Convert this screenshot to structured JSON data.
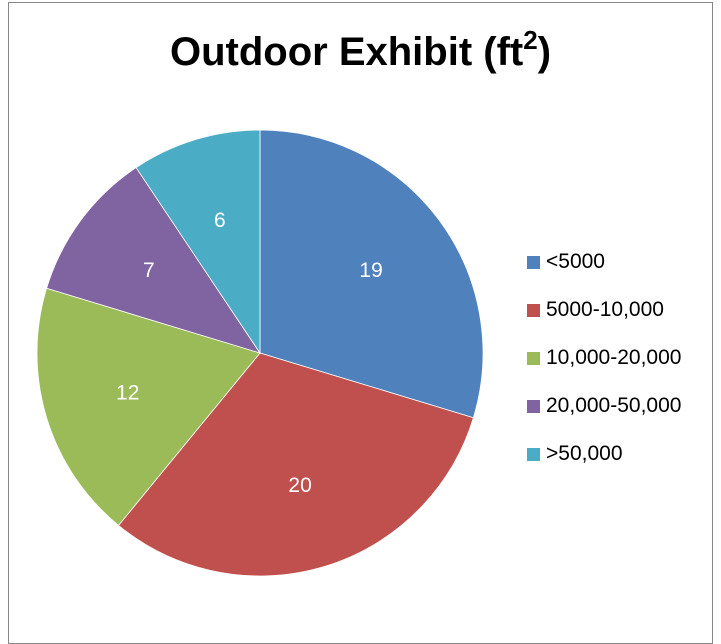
{
  "chart_data": {
    "type": "pie",
    "title_main": "Outdoor Exhibit (ft",
    "title_sup": "2",
    "title_close": ")",
    "categories": [
      "<5000",
      "5000-10,000",
      "10,000-20,000",
      "20,000-50,000",
      ">50,000"
    ],
    "values": [
      19,
      20,
      12,
      7,
      6
    ],
    "colors": [
      "#4F81BD",
      "#C0504D",
      "#9BBB59",
      "#8064A2",
      "#4BACC6"
    ],
    "data_labels": [
      "19",
      "20",
      "12",
      "7",
      "6"
    ],
    "start": "12 o'clock",
    "direction": "clockwise",
    "legend_position": "right"
  }
}
